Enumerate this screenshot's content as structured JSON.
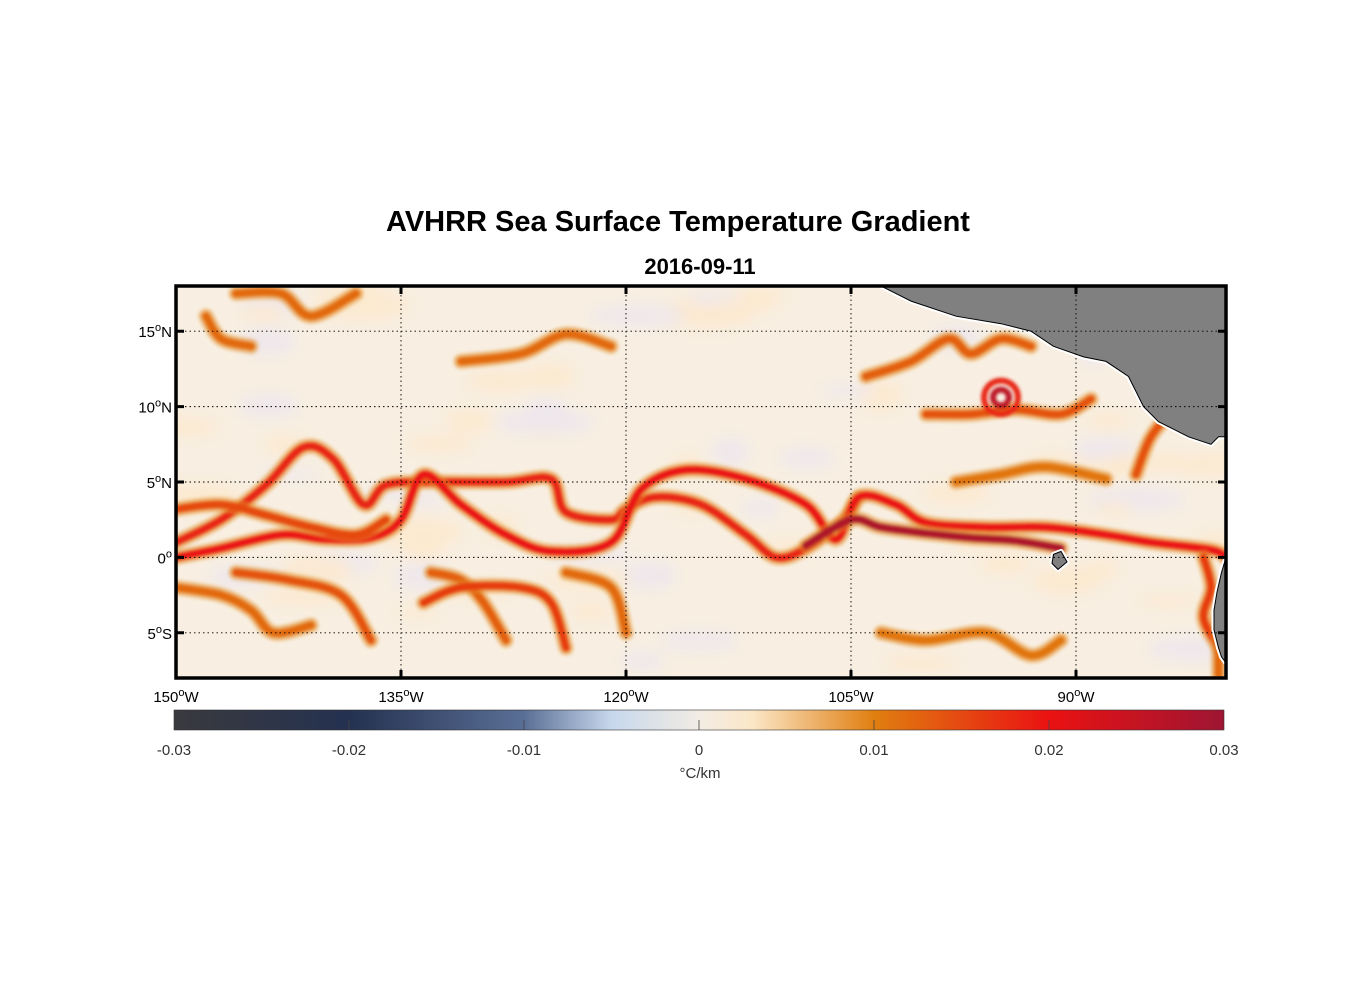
{
  "title": "AVHRR Sea Surface Temperature Gradient",
  "subtitle": "2016-09-11",
  "map": {
    "lon_range": [
      -150,
      -80
    ],
    "lat_range": [
      -8,
      18
    ],
    "lon_ticks": [
      {
        "value": -150,
        "num": "150",
        "hemi": "W"
      },
      {
        "value": -135,
        "num": "135",
        "hemi": "W"
      },
      {
        "value": -120,
        "num": "120",
        "hemi": "W"
      },
      {
        "value": -105,
        "num": "105",
        "hemi": "W"
      },
      {
        "value": -90,
        "num": "90",
        "hemi": "W"
      }
    ],
    "lat_ticks": [
      {
        "value": 15,
        "num": "15",
        "hemi": "N"
      },
      {
        "value": 10,
        "num": "10",
        "hemi": "N"
      },
      {
        "value": 5,
        "num": "5",
        "hemi": "N"
      },
      {
        "value": 0,
        "num": "0",
        "hemi": ""
      },
      {
        "value": -5,
        "num": "5",
        "hemi": "S"
      }
    ],
    "degree_symbol": "o",
    "land_color": "#808080",
    "gridlines": "dotted"
  },
  "colorbar": {
    "min": -0.03,
    "max": 0.03,
    "ticks": [
      "-0.03",
      "-0.02",
      "-0.01",
      "0",
      "0.01",
      "0.02",
      "0.03"
    ],
    "tick_values": [
      -0.03,
      -0.02,
      -0.01,
      0,
      0.01,
      0.02,
      0.03
    ],
    "unit_label": "°C/km",
    "colormap_stops": [
      {
        "value": -0.03,
        "color": "#3a3a3e"
      },
      {
        "value": -0.02,
        "color": "#243150"
      },
      {
        "value": -0.01,
        "color": "#5a6f96"
      },
      {
        "value": -0.005,
        "color": "#c7d8ec"
      },
      {
        "value": 0,
        "color": "#f2ece4"
      },
      {
        "value": 0.003,
        "color": "#fbe7c8"
      },
      {
        "value": 0.01,
        "color": "#e07f10"
      },
      {
        "value": 0.02,
        "color": "#ea1212"
      },
      {
        "value": 0.03,
        "color": "#9e1533"
      }
    ]
  },
  "fronts": [
    {
      "level": 0.018,
      "points": [
        [
          -150,
          1
        ],
        [
          -147,
          2.5
        ],
        [
          -144,
          4.8
        ],
        [
          -141.5,
          7.3
        ],
        [
          -139.5,
          6.5
        ],
        [
          -137.5,
          3.5
        ],
        [
          -136,
          4.8
        ],
        [
          -133,
          5
        ],
        [
          -128,
          5
        ],
        [
          -125,
          5.2
        ],
        [
          -124,
          3
        ],
        [
          -121,
          2.5
        ],
        [
          -120,
          3.2
        ],
        [
          -118,
          4
        ],
        [
          -115,
          3.5
        ],
        [
          -112,
          1.5
        ],
        [
          -110,
          0
        ],
        [
          -108,
          0.6
        ],
        [
          -105.5,
          2.5
        ],
        [
          -104.5,
          4
        ]
      ]
    },
    {
      "level": 0.02,
      "points": [
        [
          -150,
          0
        ],
        [
          -147,
          0.6
        ],
        [
          -143,
          1.5
        ],
        [
          -140,
          1.2
        ],
        [
          -137,
          1.3
        ],
        [
          -135,
          2.5
        ],
        [
          -133.5,
          5.5
        ],
        [
          -131,
          3.5
        ],
        [
          -128,
          1.5
        ],
        [
          -125,
          0.4
        ],
        [
          -121,
          1
        ],
        [
          -119,
          4.5
        ],
        [
          -116,
          5.8
        ],
        [
          -112,
          5.2
        ],
        [
          -108,
          3.5
        ],
        [
          -106,
          1.2
        ],
        [
          -104.5,
          4
        ],
        [
          -102,
          3.5
        ],
        [
          -100,
          2.3
        ],
        [
          -96,
          2
        ],
        [
          -92,
          2
        ],
        [
          -88,
          1.5
        ],
        [
          -85,
          1
        ],
        [
          -81,
          0.5
        ],
        [
          -80,
          0
        ]
      ]
    },
    {
      "level": 0.028,
      "points": [
        [
          -108,
          0.8
        ],
        [
          -105,
          2.5
        ],
        [
          -103,
          2
        ],
        [
          -100,
          1.6
        ],
        [
          -97,
          1.3
        ],
        [
          -94,
          1.1
        ],
        [
          -91,
          0.6
        ]
      ]
    },
    {
      "level": 0.015,
      "points": [
        [
          -150,
          3.2
        ],
        [
          -147,
          3.5
        ],
        [
          -144,
          2.8
        ],
        [
          -141,
          2
        ],
        [
          -138,
          1.5
        ],
        [
          -136,
          2.5
        ]
      ]
    },
    {
      "level": 0.012,
      "points": [
        [
          -150,
          -2
        ],
        [
          -147,
          -2.5
        ],
        [
          -145,
          -3.5
        ],
        [
          -143.5,
          -5
        ],
        [
          -141,
          -4.5
        ]
      ]
    },
    {
      "level": 0.014,
      "points": [
        [
          -146,
          -1
        ],
        [
          -142.5,
          -1.5
        ],
        [
          -139,
          -2.5
        ],
        [
          -137,
          -5.5
        ]
      ]
    },
    {
      "level": 0.013,
      "points": [
        [
          -133,
          -1
        ],
        [
          -131,
          -1.5
        ],
        [
          -129.5,
          -3
        ],
        [
          -128,
          -5.5
        ]
      ]
    },
    {
      "level": 0.016,
      "points": [
        [
          -133.5,
          -3
        ],
        [
          -131,
          -2
        ],
        [
          -127,
          -2
        ],
        [
          -125,
          -3
        ],
        [
          -124,
          -6
        ]
      ]
    },
    {
      "level": 0.012,
      "points": [
        [
          -124,
          -1
        ],
        [
          -121,
          -2
        ],
        [
          -120,
          -5
        ]
      ]
    },
    {
      "level": 0.011,
      "points": [
        [
          -103,
          -5
        ],
        [
          -100,
          -5.5
        ],
        [
          -96,
          -5
        ],
        [
          -93,
          -6.5
        ],
        [
          -91,
          -5.5
        ]
      ]
    },
    {
      "level": 0.012,
      "points": [
        [
          -146,
          17.5
        ],
        [
          -143,
          17.5
        ],
        [
          -141,
          16
        ],
        [
          -138,
          17.5
        ]
      ]
    },
    {
      "level": 0.012,
      "points": [
        [
          -148,
          16
        ],
        [
          -147,
          14.5
        ],
        [
          -145,
          14
        ]
      ]
    },
    {
      "level": 0.013,
      "points": [
        [
          -104,
          12
        ],
        [
          -101,
          13
        ],
        [
          -98.5,
          14.5
        ],
        [
          -97,
          13.5
        ],
        [
          -95,
          14.5
        ],
        [
          -93,
          14
        ]
      ]
    },
    {
      "level": 0.014,
      "points": [
        [
          -100,
          9.5
        ],
        [
          -97,
          9.5
        ],
        [
          -94,
          9.8
        ],
        [
          -91,
          9.5
        ],
        [
          -89,
          10.5
        ]
      ]
    },
    {
      "level": 0.014,
      "points": [
        [
          -86,
          5.5
        ],
        [
          -85,
          8
        ],
        [
          -83.5,
          9.5
        ],
        [
          -82,
          9
        ]
      ]
    },
    {
      "level": 0.016,
      "points": [
        [
          -81.5,
          0
        ],
        [
          -81,
          -2
        ],
        [
          -81.5,
          -4
        ],
        [
          -80.5,
          -6
        ]
      ]
    },
    {
      "level": 0.012,
      "points": [
        [
          -131,
          13
        ],
        [
          -127,
          13.5
        ],
        [
          -124,
          14.8
        ],
        [
          -121,
          14
        ]
      ]
    },
    {
      "level": 0.011,
      "points": [
        [
          -98,
          5
        ],
        [
          -95,
          5.5
        ],
        [
          -92,
          6
        ],
        [
          -88,
          5.2
        ]
      ]
    },
    {
      "level": 0.012,
      "points": [
        [
          -80.5,
          -4
        ],
        [
          -80.5,
          -7.8
        ]
      ]
    }
  ],
  "eddies": [
    {
      "lon": -95,
      "lat": 10.6,
      "level": 0.026
    }
  ],
  "land": [
    {
      "name": "central-america",
      "points": [
        [
          -103,
          18
        ],
        [
          -101,
          17
        ],
        [
          -98,
          16
        ],
        [
          -95,
          15.5
        ],
        [
          -93,
          15
        ],
        [
          -91.5,
          14
        ],
        [
          -89.5,
          13.3
        ],
        [
          -88,
          13
        ],
        [
          -86.5,
          12
        ],
        [
          -86,
          11
        ],
        [
          -85.5,
          10
        ],
        [
          -84.5,
          9
        ],
        [
          -83.5,
          8.5
        ],
        [
          -82.5,
          8
        ],
        [
          -81,
          7.5
        ],
        [
          -80.5,
          8
        ],
        [
          -80,
          8
        ],
        [
          -80,
          18
        ]
      ]
    },
    {
      "name": "south-america",
      "points": [
        [
          -80,
          0
        ],
        [
          -80.3,
          -1
        ],
        [
          -80.6,
          -2.3
        ],
        [
          -80.8,
          -3.5
        ],
        [
          -80.8,
          -4.8
        ],
        [
          -80.5,
          -6
        ],
        [
          -80.3,
          -6.6
        ],
        [
          -80,
          -7
        ]
      ]
    },
    {
      "name": "galapagos",
      "points": [
        [
          -91.5,
          0.2
        ],
        [
          -91,
          0.4
        ],
        [
          -90.6,
          -0.3
        ],
        [
          -91.2,
          -0.8
        ],
        [
          -91.6,
          -0.4
        ]
      ]
    }
  ]
}
